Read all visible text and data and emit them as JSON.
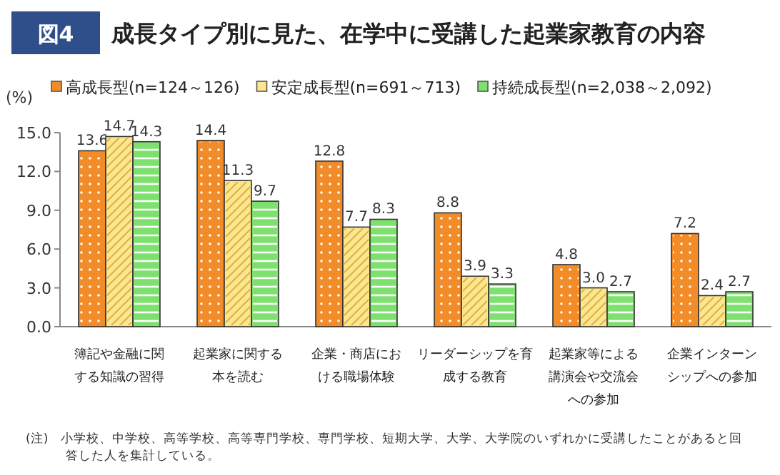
{
  "chart_data": {
    "type": "bar",
    "title": "成長タイプ別に見た、在学中に受講した起業家教育の内容",
    "ylabel": "(%)",
    "annotations": [
      "図4",
      "(注)　小学校、中学校、高等学校、高等専門学校、専門学校、短期大学、大学、大学院のいずれかに受講したことがあると回答した人を集計している。"
    ],
    "categories": [
      "簿記や金融に関する知識の習得",
      "起業家に関する本を読む",
      "企業・商店における職場体験",
      "リーダーシップを育成する教育",
      "起業家等による講演会や交流会への参加",
      "企業インターンシップへの参加"
    ],
    "series": [
      {
        "name": "高成長型(n=124～126)",
        "color": "#f28c28",
        "values": [
          13.6,
          14.4,
          12.8,
          8.8,
          4.8,
          7.2
        ],
        "value_labels": [
          "13.6",
          "14.4",
          "12.8",
          "8.8",
          "4.8",
          "7.2"
        ]
      },
      {
        "name": "安定成長型(n=691～713)",
        "color": "#fde68c",
        "values": [
          14.7,
          11.3,
          7.7,
          3.9,
          3.0,
          2.4
        ],
        "value_labels": [
          "14.7",
          "11.3",
          "7.7",
          "3.9",
          "3.0",
          "2.4"
        ]
      },
      {
        "name": "持続成長型(n=2,038～2,092)",
        "color": "#7ee06e",
        "values": [
          14.3,
          9.7,
          8.3,
          3.3,
          2.7,
          2.7
        ],
        "value_labels": [
          "14.3",
          "9.7",
          "8.3",
          "3.3",
          "2.7",
          "2.7"
        ]
      }
    ],
    "ylim": [
      0,
      15
    ],
    "yticks": [
      {
        "value": 0,
        "label": "0.0"
      },
      {
        "value": 3,
        "label": "3.0"
      },
      {
        "value": 6,
        "label": "6.0"
      },
      {
        "value": 9,
        "label": "9.0"
      },
      {
        "value": 12,
        "label": "12.0"
      },
      {
        "value": 15,
        "label": "15.0"
      }
    ],
    "legend": "top",
    "grid": false
  }
}
